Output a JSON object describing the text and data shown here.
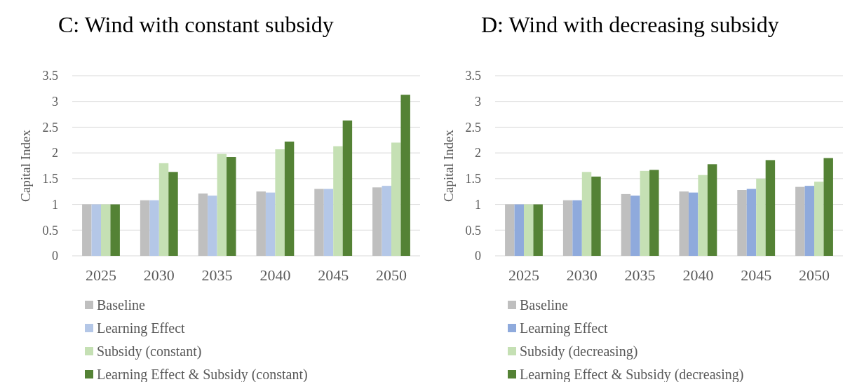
{
  "chart_data": [
    {
      "type": "bar",
      "title": "C: Wind with constant subsidy",
      "ylabel": "Capital Index",
      "categories": [
        "2025",
        "2030",
        "2035",
        "2040",
        "2045",
        "2050"
      ],
      "series": [
        {
          "name": "Baseline",
          "color": "#bfbfbf",
          "values": [
            1,
            1.08,
            1.21,
            1.25,
            1.3,
            1.33
          ]
        },
        {
          "name": "Learning Effect",
          "color": "#b4c7e7",
          "values": [
            1,
            1.08,
            1.17,
            1.23,
            1.3,
            1.36
          ]
        },
        {
          "name": "Subsidy (constant)",
          "color": "#c5e0b4",
          "values": [
            1,
            1.8,
            1.98,
            2.07,
            2.13,
            2.2
          ]
        },
        {
          "name": "Learning Effect & Subsidy (constant)",
          "color": "#548235",
          "values": [
            1,
            1.63,
            1.92,
            2.22,
            2.63,
            3.13
          ]
        }
      ],
      "ylim": [
        0,
        3.5
      ],
      "yticks": [
        0,
        0.5,
        1,
        1.5,
        2,
        2.5,
        3,
        3.5
      ],
      "grid": "y",
      "legend": "bottom"
    },
    {
      "type": "bar",
      "title": "D: Wind with decreasing subsidy",
      "ylabel": "Capital Index",
      "categories": [
        "2025",
        "2030",
        "2035",
        "2040",
        "2045",
        "2050"
      ],
      "series": [
        {
          "name": "Baseline",
          "color": "#bfbfbf",
          "values": [
            1,
            1.08,
            1.2,
            1.25,
            1.28,
            1.34
          ]
        },
        {
          "name": "Learning Effect",
          "color": "#8faadc",
          "values": [
            1,
            1.08,
            1.17,
            1.23,
            1.3,
            1.36
          ]
        },
        {
          "name": "Subsidy (decreasing)",
          "color": "#c5e0b4",
          "values": [
            1,
            1.63,
            1.65,
            1.57,
            1.5,
            1.44
          ]
        },
        {
          "name": "Learning Effect & Subsidy (decreasing)",
          "color": "#548235",
          "values": [
            1,
            1.54,
            1.67,
            1.78,
            1.86,
            1.9
          ]
        }
      ],
      "ylim": [
        0,
        3.5
      ],
      "yticks": [
        0,
        0.5,
        1,
        1.5,
        2,
        2.5,
        3,
        3.5
      ],
      "grid": "y",
      "legend": "bottom"
    }
  ]
}
